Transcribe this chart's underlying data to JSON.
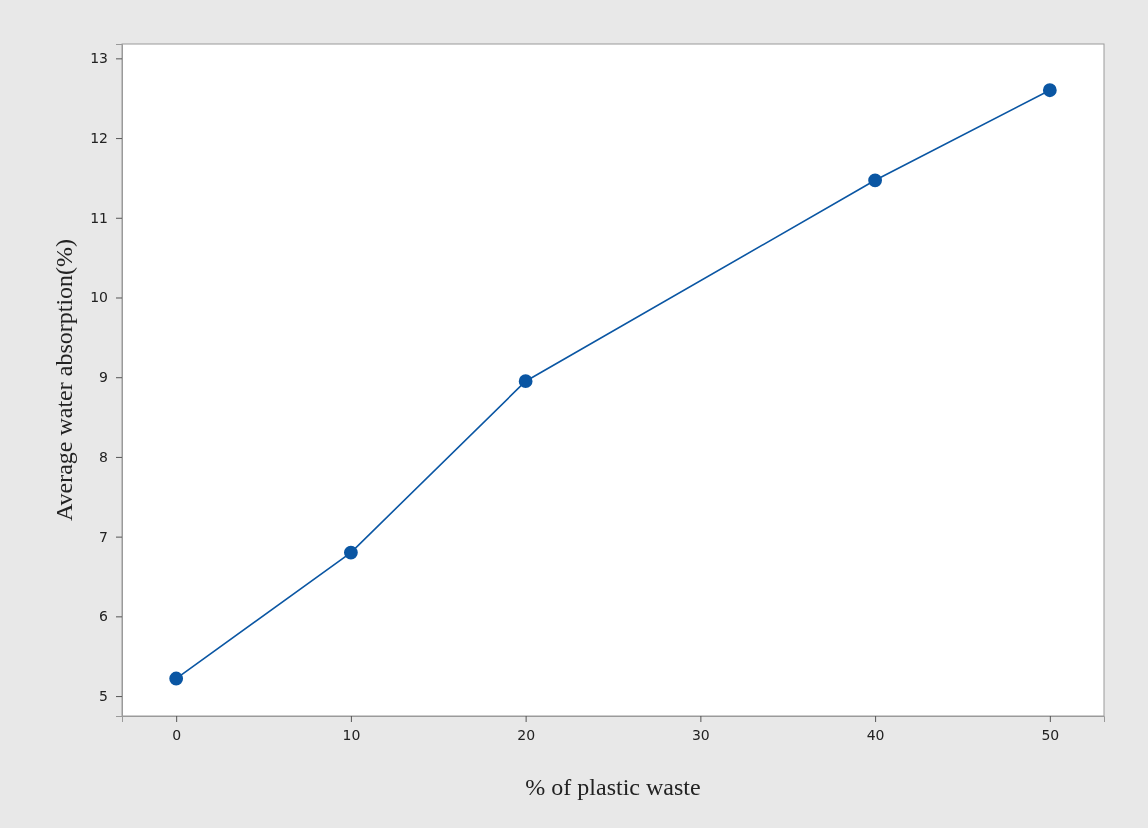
{
  "chart_data": {
    "type": "line",
    "xlabel": "% of plastic waste",
    "ylabel": "Average water absorption(%)",
    "x": [
      0,
      10,
      20,
      40,
      50
    ],
    "series": [
      {
        "color": "#0a56a3",
        "values": [
          5.22,
          6.8,
          8.95,
          11.47,
          12.6
        ]
      }
    ],
    "xlim": [
      -3.1,
      53.1
    ],
    "xticks": [
      0,
      10,
      20,
      30,
      40,
      50
    ],
    "ylim": [
      4.75,
      13.18
    ],
    "yticks": [
      5,
      6,
      7,
      8,
      9,
      10,
      11,
      12,
      13
    ],
    "marker": "circle",
    "line_style": "solid",
    "grid": false
  }
}
